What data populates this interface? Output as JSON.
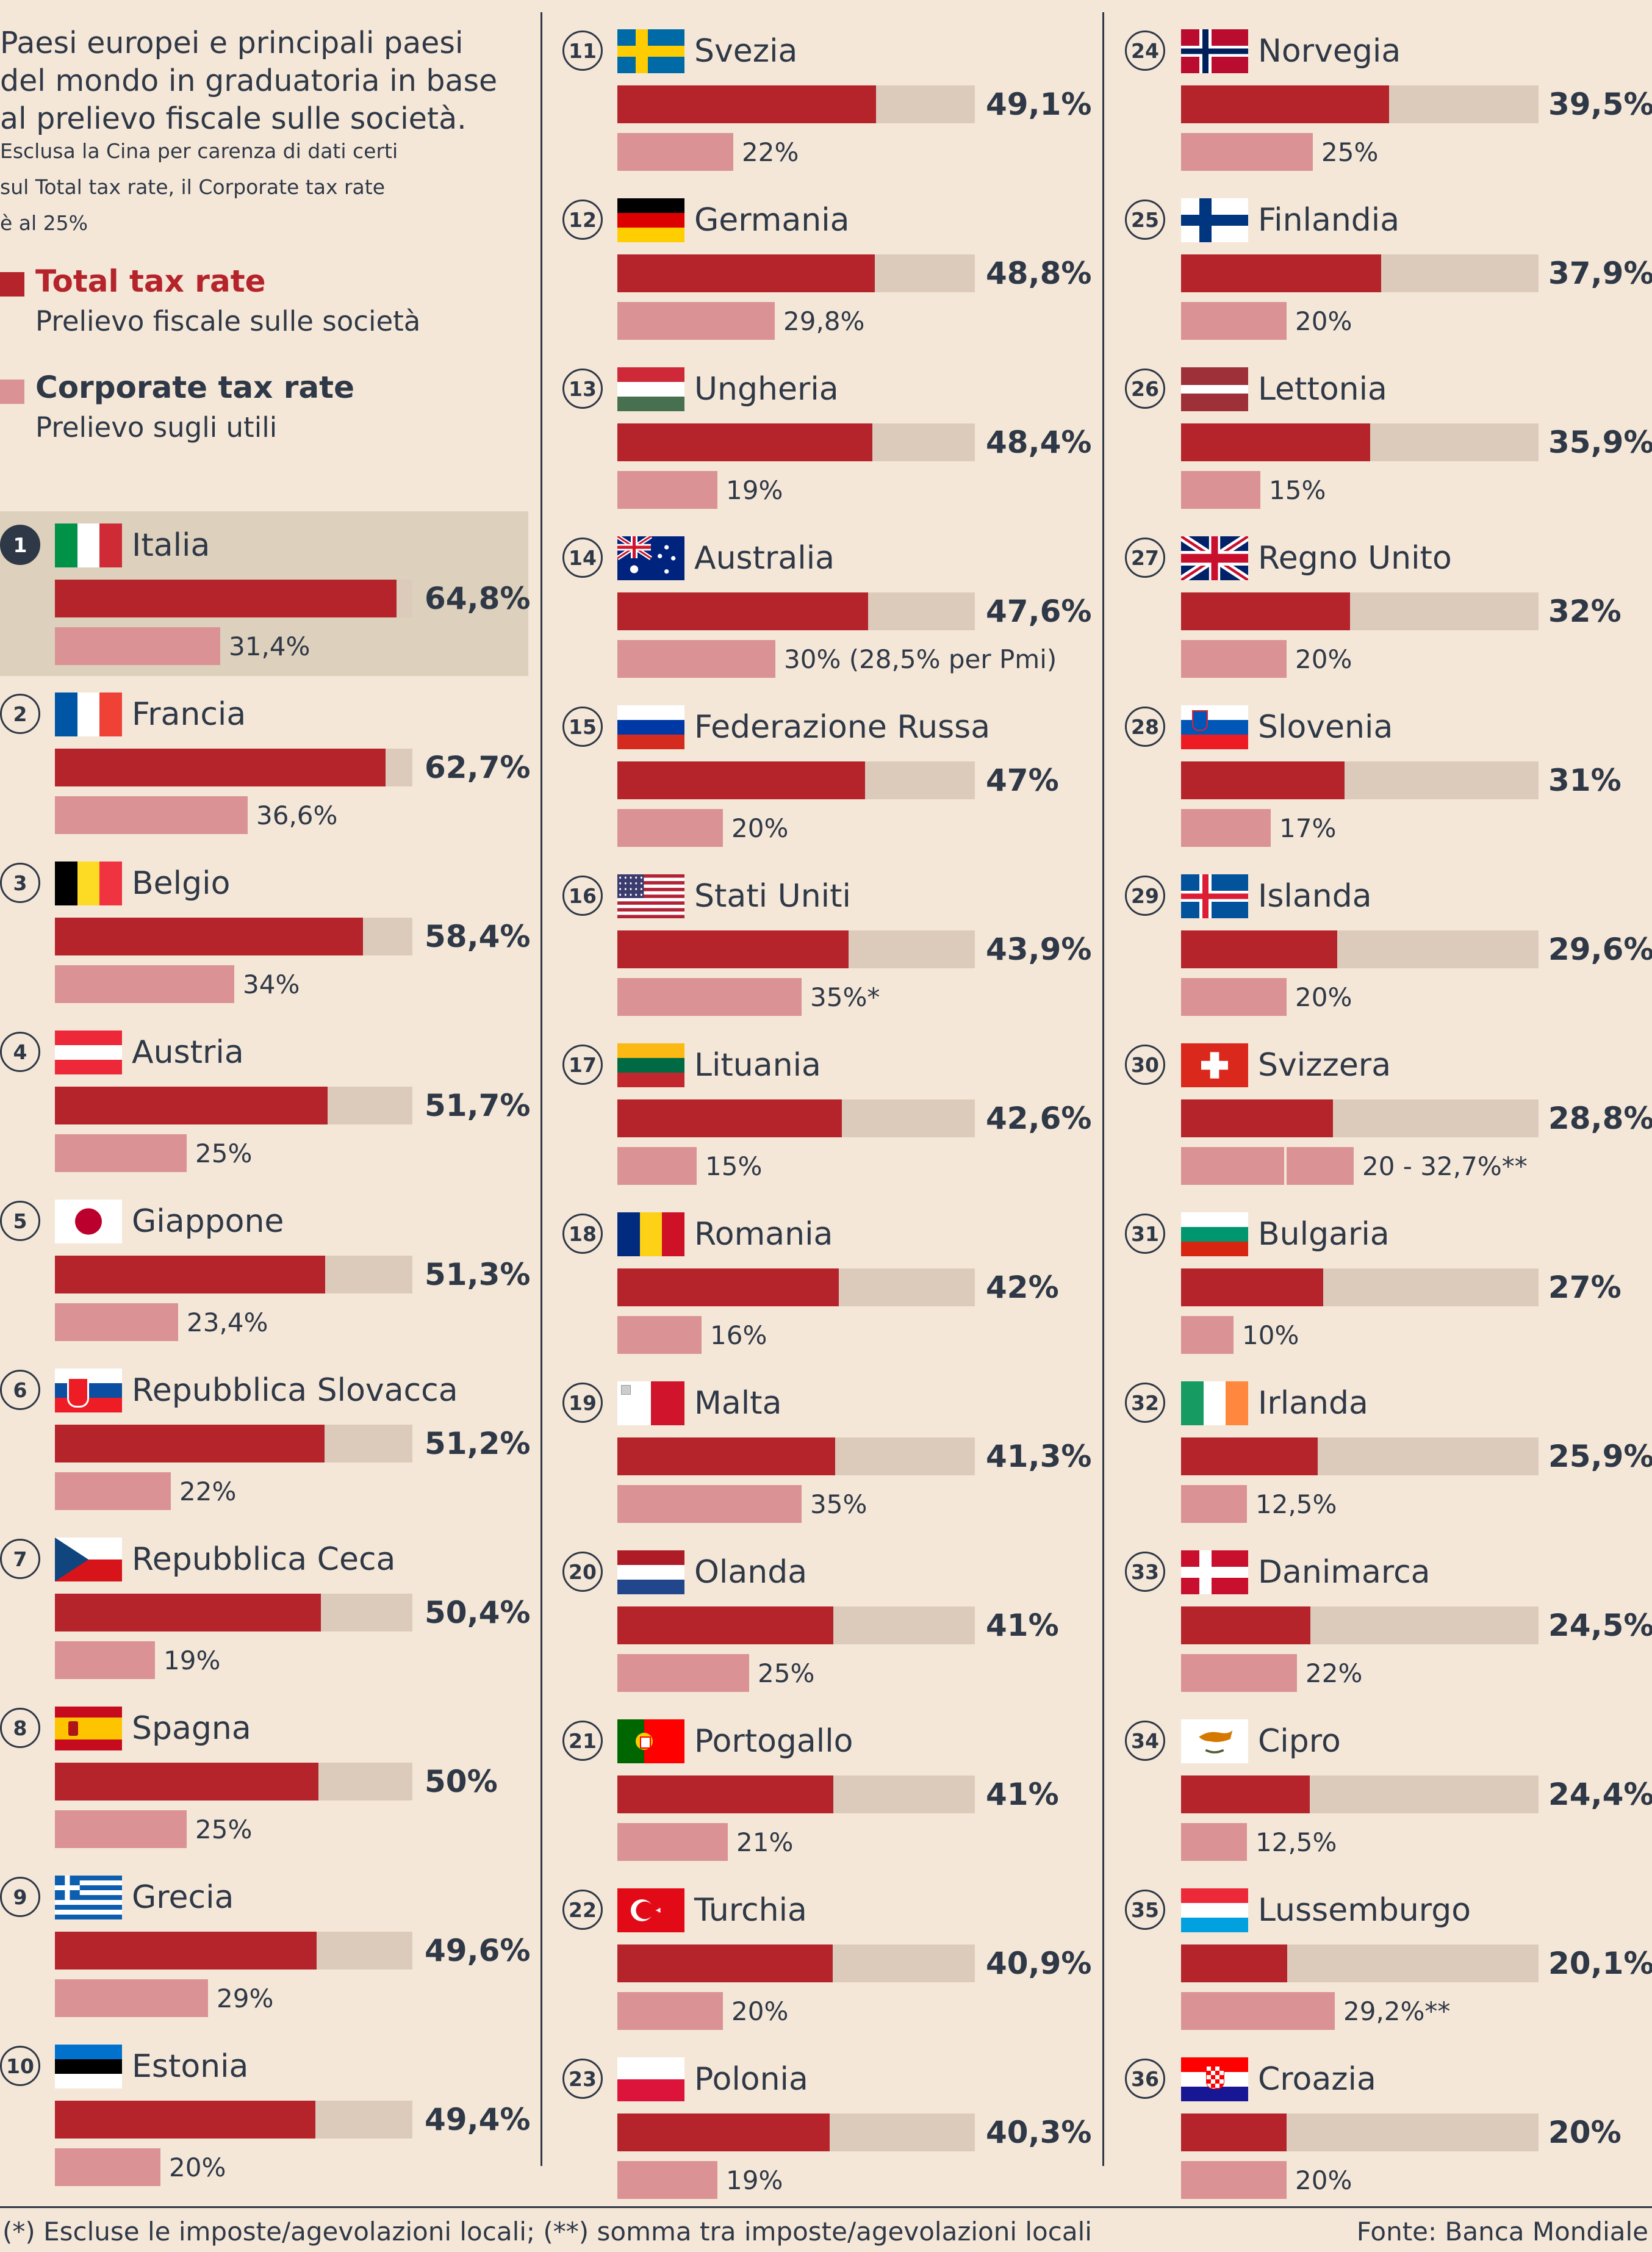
{
  "header": {
    "title_lines": [
      "Paesi europei e principali paesi",
      "del mondo in graduatoria in base",
      "al prelievo fiscale sulle società."
    ],
    "subtitle_lines": [
      "Esclusa la Cina per carenza di dati certi",
      "sul Total tax rate, il Corporate tax rate",
      "è al 25%"
    ]
  },
  "legend": {
    "total": {
      "title": "Total tax rate",
      "subtitle": "Prelievo fiscale sulle società",
      "color": "#b5232b"
    },
    "corporate": {
      "title": "Corporate tax rate",
      "subtitle": "Prelievo sugli utili",
      "color": "#db9294"
    }
  },
  "colors": {
    "background": "#f4e7d8",
    "track": "#dccbbb",
    "highlight": "#ddd0bc",
    "text": "#2f3846"
  },
  "chart_data": {
    "type": "bar",
    "series": [
      {
        "name": "Total tax rate",
        "unit": "%"
      },
      {
        "name": "Corporate tax rate",
        "unit": "%"
      }
    ],
    "scale_max": 64.8,
    "rows": [
      {
        "rank": "1",
        "country": "Italia",
        "flag": "italy-flag",
        "total": 64.8,
        "total_label": "64,8%",
        "corporate": 31.4,
        "corporate_label": "31,4%",
        "highlight": true
      },
      {
        "rank": "2",
        "country": "Francia",
        "flag": "france-flag",
        "total": 62.7,
        "total_label": "62,7%",
        "corporate": 36.6,
        "corporate_label": "36,6%"
      },
      {
        "rank": "3",
        "country": "Belgio",
        "flag": "belgium-flag",
        "total": 58.4,
        "total_label": "58,4%",
        "corporate": 34,
        "corporate_label": "34%"
      },
      {
        "rank": "4",
        "country": "Austria",
        "flag": "austria-flag",
        "total": 51.7,
        "total_label": "51,7%",
        "corporate": 25,
        "corporate_label": "25%"
      },
      {
        "rank": "5",
        "country": "Giappone",
        "flag": "japan-flag",
        "total": 51.3,
        "total_label": "51,3%",
        "corporate": 23.4,
        "corporate_label": "23,4%"
      },
      {
        "rank": "6",
        "country": "Repubblica Slovacca",
        "flag": "slovakia-flag",
        "total": 51.2,
        "total_label": "51,2%",
        "corporate": 22,
        "corporate_label": "22%"
      },
      {
        "rank": "7",
        "country": "Repubblica Ceca",
        "flag": "czech-flag",
        "total": 50.4,
        "total_label": "50,4%",
        "corporate": 19,
        "corporate_label": "19%"
      },
      {
        "rank": "8",
        "country": "Spagna",
        "flag": "spain-flag",
        "total": 50,
        "total_label": "50%",
        "corporate": 25,
        "corporate_label": "25%"
      },
      {
        "rank": "9",
        "country": "Grecia",
        "flag": "greece-flag",
        "total": 49.6,
        "total_label": "49,6%",
        "corporate": 29,
        "corporate_label": "29%"
      },
      {
        "rank": "10",
        "country": "Estonia",
        "flag": "estonia-flag",
        "total": 49.4,
        "total_label": "49,4%",
        "corporate": 20,
        "corporate_label": "20%"
      },
      {
        "rank": "11",
        "country": "Svezia",
        "flag": "sweden-flag",
        "total": 49.1,
        "total_label": "49,1%",
        "corporate": 22,
        "corporate_label": "22%"
      },
      {
        "rank": "12",
        "country": "Germania",
        "flag": "germany-flag",
        "total": 48.8,
        "total_label": "48,8%",
        "corporate": 29.8,
        "corporate_label": "29,8%"
      },
      {
        "rank": "13",
        "country": "Ungheria",
        "flag": "hungary-flag",
        "total": 48.4,
        "total_label": "48,4%",
        "corporate": 19,
        "corporate_label": "19%"
      },
      {
        "rank": "14",
        "country": "Australia",
        "flag": "australia-flag",
        "total": 47.6,
        "total_label": "47,6%",
        "corporate": 30,
        "corporate_label": "30% (28,5% per Pmi)"
      },
      {
        "rank": "15",
        "country": "Federazione Russa",
        "flag": "russia-flag",
        "total": 47,
        "total_label": "47%",
        "corporate": 20,
        "corporate_label": "20%"
      },
      {
        "rank": "16",
        "country": "Stati Uniti",
        "flag": "usa-flag",
        "total": 43.9,
        "total_label": "43,9%",
        "corporate": 35,
        "corporate_label": "35%*"
      },
      {
        "rank": "17",
        "country": "Lituania",
        "flag": "lithuania-flag",
        "total": 42.6,
        "total_label": "42,6%",
        "corporate": 15,
        "corporate_label": "15%"
      },
      {
        "rank": "18",
        "country": "Romania",
        "flag": "romania-flag",
        "total": 42,
        "total_label": "42%",
        "corporate": 16,
        "corporate_label": "16%"
      },
      {
        "rank": "19",
        "country": "Malta",
        "flag": "malta-flag",
        "total": 41.3,
        "total_label": "41,3%",
        "corporate": 35,
        "corporate_label": "35%"
      },
      {
        "rank": "20",
        "country": "Olanda",
        "flag": "netherlands-flag",
        "total": 41,
        "total_label": "41%",
        "corporate": 25,
        "corporate_label": "25%"
      },
      {
        "rank": "21",
        "country": "Portogallo",
        "flag": "portugal-flag",
        "total": 41,
        "total_label": "41%",
        "corporate": 21,
        "corporate_label": "21%"
      },
      {
        "rank": "22",
        "country": "Turchia",
        "flag": "turkey-flag",
        "total": 40.9,
        "total_label": "40,9%",
        "corporate": 20,
        "corporate_label": "20%"
      },
      {
        "rank": "23",
        "country": "Polonia",
        "flag": "poland-flag",
        "total": 40.3,
        "total_label": "40,3%",
        "corporate": 19,
        "corporate_label": "19%"
      },
      {
        "rank": "24",
        "country": "Norvegia",
        "flag": "norway-flag",
        "total": 39.5,
        "total_label": "39,5%",
        "corporate": 25,
        "corporate_label": "25%"
      },
      {
        "rank": "25",
        "country": "Finlandia",
        "flag": "finland-flag",
        "total": 37.9,
        "total_label": "37,9%",
        "corporate": 20,
        "corporate_label": "20%"
      },
      {
        "rank": "26",
        "country": "Lettonia",
        "flag": "latvia-flag",
        "total": 35.9,
        "total_label": "35,9%",
        "corporate": 15,
        "corporate_label": "15%"
      },
      {
        "rank": "27",
        "country": "Regno Unito",
        "flag": "uk-flag",
        "total": 32,
        "total_label": "32%",
        "corporate": 20,
        "corporate_label": "20%"
      },
      {
        "rank": "28",
        "country": "Slovenia",
        "flag": "slovenia-flag",
        "total": 31,
        "total_label": "31%",
        "corporate": 17,
        "corporate_label": "17%"
      },
      {
        "rank": "29",
        "country": "Islanda",
        "flag": "iceland-flag",
        "total": 29.6,
        "total_label": "29,6%",
        "corporate": 20,
        "corporate_label": "20%"
      },
      {
        "rank": "30",
        "country": "Svizzera",
        "flag": "switzerland-flag",
        "total": 28.8,
        "total_label": "28,8%",
        "corporate": 32.7,
        "corporate_min": 20,
        "corporate_label": "20 - 32,7%**"
      },
      {
        "rank": "31",
        "country": "Bulgaria",
        "flag": "bulgaria-flag",
        "total": 27,
        "total_label": "27%",
        "corporate": 10,
        "corporate_label": "10%"
      },
      {
        "rank": "32",
        "country": "Irlanda",
        "flag": "ireland-flag",
        "total": 25.9,
        "total_label": "25,9%",
        "corporate": 12.5,
        "corporate_label": "12,5%"
      },
      {
        "rank": "33",
        "country": "Danimarca",
        "flag": "denmark-flag",
        "total": 24.5,
        "total_label": "24,5%",
        "corporate": 22,
        "corporate_label": "22%"
      },
      {
        "rank": "34",
        "country": "Cipro",
        "flag": "cyprus-flag",
        "total": 24.4,
        "total_label": "24,4%",
        "corporate": 12.5,
        "corporate_label": "12,5%"
      },
      {
        "rank": "35",
        "country": "Lussemburgo",
        "flag": "luxembourg-flag",
        "total": 20.1,
        "total_label": "20,1%",
        "corporate": 29.2,
        "corporate_label": "29,2%**"
      },
      {
        "rank": "36",
        "country": "Croazia",
        "flag": "croatia-flag",
        "total": 20,
        "total_label": "20%",
        "corporate": 20,
        "corporate_label": "20%"
      }
    ]
  },
  "footer": {
    "note": "(*) Escluse le imposte/agevolazioni locali; (**) somma tra imposte/agevolazioni locali",
    "source": "Fonte: Banca Mondiale"
  }
}
